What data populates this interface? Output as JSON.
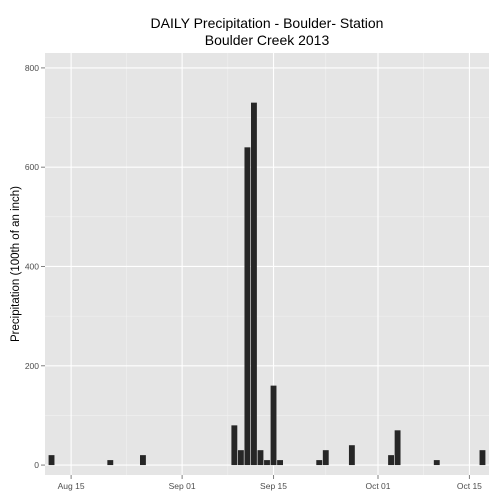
{
  "chart_data": {
    "type": "bar",
    "title_line1": "DAILY Precipitation - Boulder- Station",
    "title_line2": "Boulder Creek 2013",
    "xlabel": "",
    "ylabel": "Precipitation (100th of an inch)",
    "x_axis": {
      "type": "date",
      "range": [
        "2013-08-11",
        "2013-10-18"
      ],
      "ticks": [
        {
          "date": "2013-08-15",
          "label": "Aug 15"
        },
        {
          "date": "2013-09-01",
          "label": "Sep 01"
        },
        {
          "date": "2013-09-15",
          "label": "Sep 15"
        },
        {
          "date": "2013-10-01",
          "label": "Oct 01"
        },
        {
          "date": "2013-10-15",
          "label": "Oct 15"
        }
      ]
    },
    "y_axis": {
      "range": [
        -20,
        830
      ],
      "ticks": [
        0,
        200,
        400,
        600,
        800
      ]
    },
    "grid": true,
    "colors": {
      "panel_background": "#e5e5e5",
      "grid_major": "#ffffff",
      "grid_minor": "#f2f2f2",
      "bar_fill": "#262626"
    },
    "points": [
      {
        "date": "2013-08-12",
        "value": 20
      },
      {
        "date": "2013-08-21",
        "value": 10
      },
      {
        "date": "2013-08-26",
        "value": 20
      },
      {
        "date": "2013-09-09",
        "value": 80
      },
      {
        "date": "2013-09-10",
        "value": 30
      },
      {
        "date": "2013-09-11",
        "value": 640
      },
      {
        "date": "2013-09-12",
        "value": 730
      },
      {
        "date": "2013-09-13",
        "value": 30
      },
      {
        "date": "2013-09-14",
        "value": 10
      },
      {
        "date": "2013-09-15",
        "value": 160
      },
      {
        "date": "2013-09-16",
        "value": 10
      },
      {
        "date": "2013-09-22",
        "value": 10
      },
      {
        "date": "2013-09-23",
        "value": 30
      },
      {
        "date": "2013-09-27",
        "value": 40
      },
      {
        "date": "2013-10-03",
        "value": 20
      },
      {
        "date": "2013-10-04",
        "value": 70
      },
      {
        "date": "2013-10-10",
        "value": 10
      },
      {
        "date": "2013-10-17",
        "value": 30
      }
    ]
  }
}
